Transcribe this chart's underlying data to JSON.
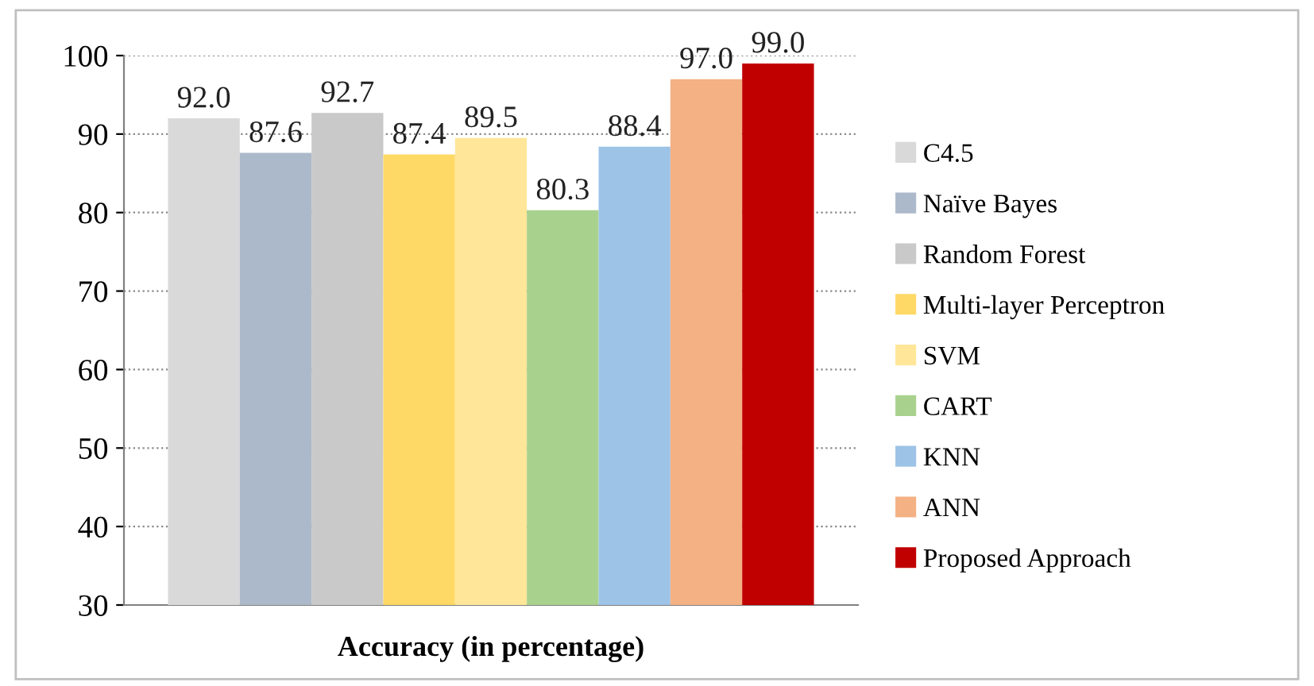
{
  "chart_data": {
    "type": "bar",
    "categories": [
      "Accuracy (in percentage)"
    ],
    "series": [
      {
        "name": "C4.5",
        "color": "#d9d9d9",
        "values": [
          92.0
        ],
        "value_labels": [
          "92.0"
        ]
      },
      {
        "name": "Naïve Bayes",
        "color": "#acb9ca",
        "values": [
          87.6
        ],
        "value_labels": [
          "87.6"
        ]
      },
      {
        "name": "Random Forest",
        "color": "#c9c9c9",
        "values": [
          92.7
        ],
        "value_labels": [
          "92.7"
        ]
      },
      {
        "name": "Multi-layer Perceptron",
        "color": "#ffd966",
        "values": [
          87.4
        ],
        "value_labels": [
          "87.4"
        ]
      },
      {
        "name": "SVM",
        "color": "#ffe699",
        "values": [
          89.5
        ],
        "value_labels": [
          "89.5"
        ]
      },
      {
        "name": "CART",
        "color": "#a9d18e",
        "values": [
          80.3
        ],
        "value_labels": [
          "80.3"
        ]
      },
      {
        "name": "KNN",
        "color": "#9dc3e6",
        "values": [
          88.4
        ],
        "value_labels": [
          "88.4"
        ]
      },
      {
        "name": "ANN",
        "color": "#f4b183",
        "values": [
          97.0
        ],
        "value_labels": [
          "97.0"
        ]
      },
      {
        "name": "Proposed Approach",
        "color": "#c00000",
        "values": [
          99.0
        ],
        "value_labels": [
          "99.0"
        ]
      }
    ],
    "ylim": [
      30,
      100
    ],
    "yticks": [
      30,
      40,
      50,
      60,
      70,
      80,
      90,
      100
    ],
    "grid": "y",
    "legend": "right"
  }
}
